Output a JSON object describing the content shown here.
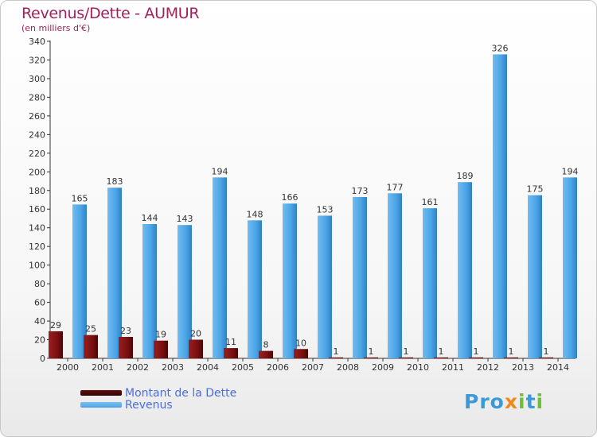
{
  "header": {
    "title": "Revenus/Dette - AUMUR",
    "subtitle": "(en milliers d'€)"
  },
  "chart_data": {
    "type": "bar",
    "categories": [
      "2000",
      "2001",
      "2002",
      "2003",
      "2004",
      "2005",
      "2006",
      "2007",
      "2008",
      "2009",
      "2010",
      "2011",
      "2012",
      "2013",
      "2014"
    ],
    "series": [
      {
        "name": "Montant de la Dette",
        "color": "#7a1010",
        "values": [
          29,
          25,
          23,
          19,
          20,
          11,
          8,
          10,
          1,
          1,
          1,
          1,
          1,
          1,
          1
        ]
      },
      {
        "name": "Revenus",
        "color": "#4aa3e4",
        "values": [
          165,
          183,
          144,
          143,
          194,
          148,
          166,
          153,
          173,
          177,
          161,
          189,
          326,
          175,
          194
        ]
      }
    ],
    "ylim": [
      0,
      340
    ],
    "yticks": [
      0,
      20,
      40,
      60,
      80,
      100,
      120,
      140,
      160,
      180,
      200,
      220,
      240,
      260,
      280,
      300,
      320,
      340
    ],
    "grid": false,
    "legend": "bottom-left"
  },
  "legend": {
    "items": [
      {
        "label": "Montant de la Dette",
        "color": "#6a0d0d"
      },
      {
        "label": "Revenus",
        "color": "#4aa3e4"
      }
    ]
  },
  "logo": {
    "text": "Proxiti",
    "colors": [
      "#3a9ad9",
      "#f08a1c",
      "#6bbf3a"
    ]
  }
}
